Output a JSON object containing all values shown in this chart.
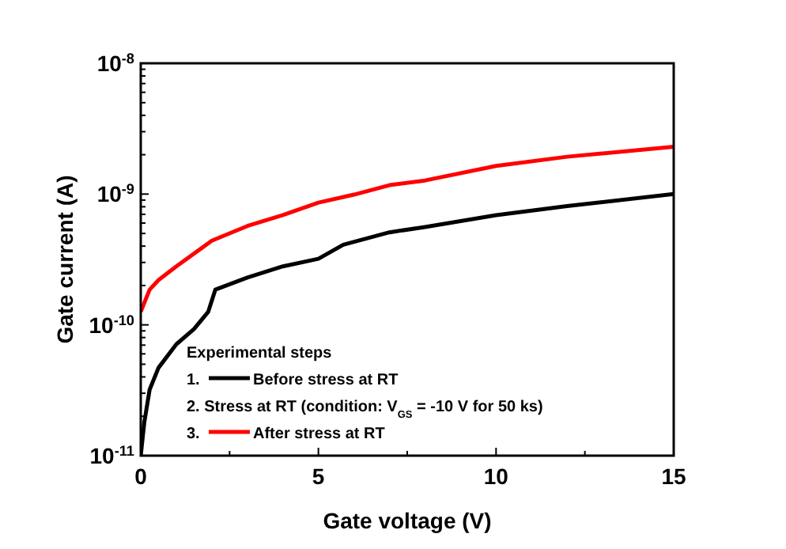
{
  "chart_data": {
    "type": "line",
    "xlabel": "Gate voltage (V)",
    "ylabel": "Gate current (A)",
    "log": "y",
    "xlim": [
      0,
      15
    ],
    "ylim": [
      1e-11,
      1e-08
    ],
    "xticks": [
      0,
      {
        "value": 2.5,
        "label": null
      },
      5,
      {
        "value": 7.5,
        "label": null
      },
      10,
      {
        "value": 12.5,
        "label": null
      },
      15
    ],
    "yticks": [
      {
        "value": 1e-11,
        "label": "10$^{-11}$"
      },
      {
        "value": 2e-11,
        "label": null
      },
      {
        "value": 3e-11,
        "label": null
      },
      {
        "value": 4e-11,
        "label": null
      },
      {
        "value": 5e-11,
        "label": null
      },
      {
        "value": 6e-11,
        "label": null
      },
      {
        "value": 7e-11,
        "label": null
      },
      {
        "value": 8e-11,
        "label": null
      },
      {
        "value": 9e-11,
        "label": null
      },
      {
        "value": 1e-10,
        "label": "10$^{-10}$"
      },
      {
        "value": 2e-10,
        "label": null
      },
      {
        "value": 3e-10,
        "label": null
      },
      {
        "value": 4e-10,
        "label": null
      },
      {
        "value": 5e-10,
        "label": null
      },
      {
        "value": 6e-10,
        "label": null
      },
      {
        "value": 7e-10,
        "label": null
      },
      {
        "value": 8e-10,
        "label": null
      },
      {
        "value": 9e-10,
        "label": null
      },
      {
        "value": 1e-09,
        "label": "10$^{-9}$"
      },
      {
        "value": 2e-09,
        "label": null
      },
      {
        "value": 3e-09,
        "label": null
      },
      {
        "value": 4e-09,
        "label": null
      },
      {
        "value": 5e-09,
        "label": null
      },
      {
        "value": 6e-09,
        "label": null
      },
      {
        "value": 7e-09,
        "label": null
      },
      {
        "value": 8e-09,
        "label": null
      },
      {
        "value": 9e-09,
        "label": null
      },
      {
        "value": 1e-08,
        "label": "10$^{-8}$"
      }
    ],
    "grid": false,
    "legend": "bottom left",
    "legend_title": "Experimental steps",
    "marker": "none",
    "line_style": "solid",
    "annotations": [
      "1.",
      "2. Stress at RT (condition: V$_{GS}$ = -10 V for 50 ks)",
      "3."
    ],
    "series": [
      {
        "name": "Before stress at RT",
        "color": "#000000",
        "x": [
          0,
          0.1,
          0.25,
          0.5,
          1,
          1.5,
          1.9,
          2.1,
          3,
          4,
          5,
          5.7,
          7,
          8,
          10,
          12,
          15
        ],
        "values": [
          1e-11,
          1.8e-11,
          3.2e-11,
          4.7e-11,
          7.1e-11,
          9.3e-11,
          1.26e-10,
          1.86e-10,
          2.3e-10,
          2.8e-10,
          3.2e-10,
          4.1e-10,
          5.1e-10,
          5.6e-10,
          6.9e-10,
          8.1e-10,
          1e-09
        ]
      },
      {
        "name": "After stress at RT",
        "color": "#ff0000",
        "x": [
          0,
          0.25,
          0.5,
          1,
          2,
          3,
          4,
          5,
          6,
          7,
          8,
          10,
          12,
          15
        ],
        "values": [
          1.26e-10,
          1.86e-10,
          2.2e-10,
          2.8e-10,
          4.4e-10,
          5.7e-10,
          6.9e-10,
          8.6e-10,
          9.9e-10,
          1.17e-09,
          1.27e-09,
          1.64e-09,
          1.93e-09,
          2.3e-09
        ]
      }
    ]
  }
}
